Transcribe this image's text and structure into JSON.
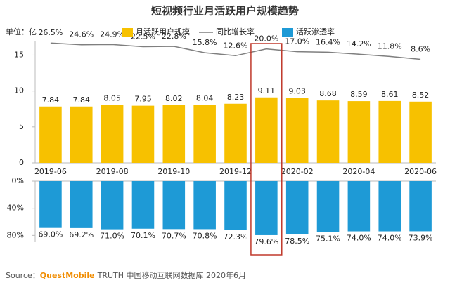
{
  "chart_data": {
    "type": "bar",
    "title": "短视频行业月活跃用户规模趋势",
    "unit_label": "单位：亿",
    "categories": [
      "2019-06",
      null,
      "2019-08",
      null,
      "2019-10",
      null,
      "2019-12",
      null,
      "2020-02",
      null,
      "2020-04",
      null,
      "2020-06"
    ],
    "ylim": [
      0,
      17
    ],
    "yticks": [
      0,
      5,
      10,
      15
    ],
    "y2lim": [
      -105,
      29
    ],
    "series": [
      {
        "name": "月活跃用户规模",
        "type": "bar",
        "color": "#f7c100",
        "values": [
          7.84,
          7.84,
          8.05,
          7.95,
          8.02,
          8.04,
          8.23,
          9.11,
          9.03,
          8.68,
          8.59,
          8.61,
          8.52
        ]
      },
      {
        "name": "同比增长率",
        "type": "line",
        "axis": "y2",
        "color": "#7f7f7f",
        "values": [
          26.5,
          24.6,
          24.9,
          22.5,
          22.8,
          15.8,
          12.6,
          20.0,
          17.0,
          16.4,
          14.2,
          11.8,
          8.6
        ],
        "value_labels": [
          "26.5%",
          "24.6%",
          "24.9%",
          "22.5%",
          "22.8%",
          "15.8%",
          "12.6%",
          "20.0%",
          "17.0%",
          "16.4%",
          "14.2%",
          "11.8%",
          "8.6%"
        ]
      }
    ],
    "lower_panel": {
      "type": "bar",
      "inverted": true,
      "ylim": [
        0,
        90
      ],
      "yticks": [
        {
          "value": 0,
          "label": "0%"
        },
        {
          "value": 40,
          "label": "40%"
        },
        {
          "value": 80,
          "label": "80%"
        }
      ],
      "series": [
        {
          "name": "活跃渗透率",
          "color": "#1e9ad6",
          "values": [
            69.0,
            69.2,
            71.0,
            70.1,
            70.7,
            70.8,
            72.3,
            79.6,
            78.5,
            75.1,
            74.0,
            74.0,
            73.9
          ],
          "value_labels": [
            "69.0%",
            "69.2%",
            "71.0%",
            "70.1%",
            "70.7%",
            "70.8%",
            "72.3%",
            "79.6%",
            "78.5%",
            "75.1%",
            "74.0%",
            "74.0%",
            "73.9%"
          ]
        }
      ]
    },
    "highlight_index": 7,
    "highlight_color": "#c0392b",
    "source": {
      "prefix": "Source：",
      "brand": "QuestMobile",
      "rest": "TRUTH 中国移动互联网数据库 2020年6月"
    }
  }
}
